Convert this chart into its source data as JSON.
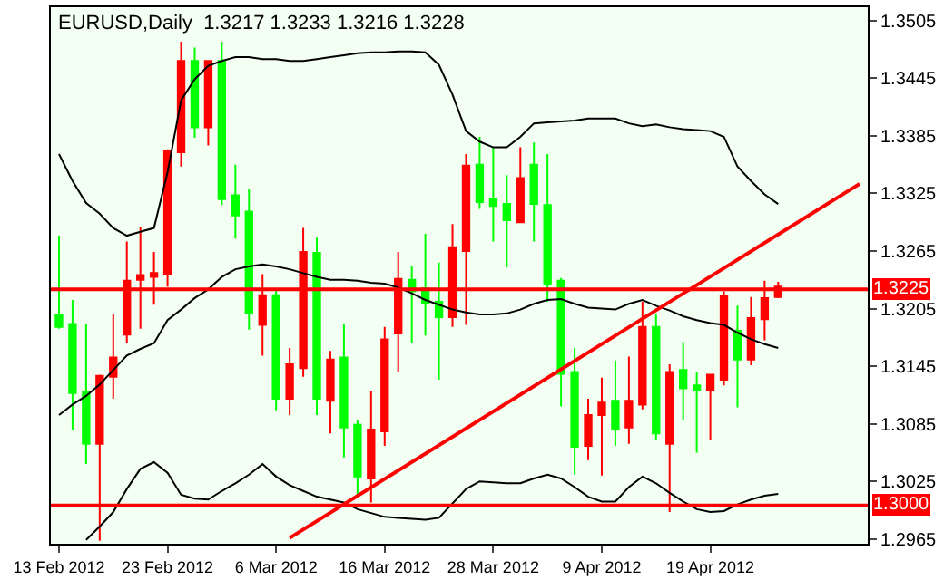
{
  "chart_data": {
    "type": "candlestick",
    "title": "EURUSD,Daily  1.3217 1.3233 1.3216 1.3228",
    "categories": [
      "13 Feb 2012",
      null,
      null,
      null,
      null,
      null,
      null,
      null,
      "23 Feb 2012",
      null,
      null,
      null,
      null,
      null,
      null,
      null,
      "6 Mar 2012",
      null,
      null,
      null,
      null,
      null,
      null,
      null,
      "16 Mar 2012",
      null,
      null,
      null,
      null,
      null,
      null,
      null,
      "28 Mar 2012",
      null,
      null,
      null,
      null,
      null,
      null,
      null,
      "9 Apr 2012",
      null,
      null,
      null,
      null,
      null,
      null,
      null,
      "19 Apr 2012",
      null,
      null,
      null,
      null,
      null,
      null,
      null,
      null,
      null,
      null,
      null
    ],
    "ylim": [
      1.296,
      1.3519
    ],
    "yticks": [
      1.2965,
      1.3025,
      1.3085,
      1.3145,
      1.3205,
      1.3265,
      1.3325,
      1.3385,
      1.3445,
      1.3505
    ],
    "grid": false,
    "ref_lines": [
      {
        "axis": "y",
        "value": 1.3225,
        "label": "1.3225",
        "color": "#ff0000"
      },
      {
        "axis": "y",
        "value": 1.3,
        "label": "1.3000",
        "color": "#ff0000"
      }
    ],
    "series": [
      {
        "ohlc": [
          [
            1.3199,
            1.3281,
            1.3184,
            1.3186
          ],
          [
            1.3189,
            1.3214,
            1.3078,
            1.3117
          ],
          [
            1.3118,
            1.3189,
            1.3043,
            1.3064
          ],
          [
            1.3064,
            1.3136,
            1.2963,
            1.3135
          ],
          [
            1.3134,
            1.3199,
            1.3111,
            1.3154
          ],
          [
            1.3178,
            1.3275,
            1.3169,
            1.3234
          ],
          [
            1.3235,
            1.329,
            1.3184,
            1.324
          ],
          [
            1.3238,
            1.3264,
            1.3209,
            1.3242
          ],
          [
            1.3241,
            1.3371,
            1.3228,
            1.3369
          ],
          [
            1.3368,
            1.3483,
            1.3353,
            1.3463
          ],
          [
            1.3463,
            1.3477,
            1.3383,
            1.3394
          ],
          [
            1.3394,
            1.3464,
            1.3375,
            1.3463
          ],
          [
            1.3463,
            1.3483,
            1.3313,
            1.3319
          ],
          [
            1.3323,
            1.3355,
            1.3278,
            1.3302
          ],
          [
            1.3306,
            1.333,
            1.3183,
            1.32
          ],
          [
            1.3188,
            1.3241,
            1.3156,
            1.3219
          ],
          [
            1.3219,
            1.3225,
            1.3099,
            1.3111
          ],
          [
            1.3111,
            1.3164,
            1.3094,
            1.3147
          ],
          [
            1.3143,
            1.3289,
            1.3134,
            1.3264
          ],
          [
            1.3263,
            1.3279,
            1.3094,
            1.3111
          ],
          [
            1.3109,
            1.3161,
            1.3075,
            1.3152
          ],
          [
            1.3154,
            1.3189,
            1.305,
            1.3081
          ],
          [
            1.3084,
            1.3089,
            1.3011,
            1.303
          ],
          [
            1.3028,
            1.3119,
            1.3003,
            1.3079
          ],
          [
            1.3077,
            1.3186,
            1.3062,
            1.3173
          ],
          [
            1.3179,
            1.3264,
            1.3139,
            1.3236
          ],
          [
            1.3235,
            1.3249,
            1.3169,
            1.3223
          ],
          [
            1.3226,
            1.3283,
            1.3177,
            1.3211
          ],
          [
            1.3212,
            1.3253,
            1.3131,
            1.3196
          ],
          [
            1.3196,
            1.3293,
            1.3186,
            1.3269
          ],
          [
            1.3265,
            1.3366,
            1.3188,
            1.3354
          ],
          [
            1.3355,
            1.3384,
            1.3309,
            1.3316
          ],
          [
            1.3319,
            1.3373,
            1.3275,
            1.3312
          ],
          [
            1.3314,
            1.3344,
            1.3248,
            1.3297
          ],
          [
            1.3295,
            1.3373,
            1.3295,
            1.3341
          ],
          [
            1.3355,
            1.3378,
            1.3275,
            1.3314
          ],
          [
            1.3313,
            1.3366,
            1.3212,
            1.3231
          ],
          [
            1.3234,
            1.3237,
            1.3103,
            1.3137
          ],
          [
            1.3139,
            1.3164,
            1.3032,
            1.3061
          ],
          [
            1.3062,
            1.3111,
            1.3047,
            1.3094
          ],
          [
            1.3094,
            1.3133,
            1.3031,
            1.3107
          ],
          [
            1.3109,
            1.3151,
            1.3062,
            1.3079
          ],
          [
            1.3081,
            1.3155,
            1.3064,
            1.3109
          ],
          [
            1.3105,
            1.3212,
            1.31,
            1.3186
          ],
          [
            1.3186,
            1.3199,
            1.3068,
            1.3075
          ],
          [
            1.3064,
            1.3147,
            1.2993,
            1.3139
          ],
          [
            1.3141,
            1.317,
            1.3089,
            1.3122
          ],
          [
            1.3125,
            1.3139,
            1.3055,
            1.312
          ],
          [
            1.312,
            1.3136,
            1.3068,
            1.3136
          ],
          [
            1.3131,
            1.3223,
            1.3125,
            1.3218
          ],
          [
            1.3182,
            1.3208,
            1.3102,
            1.3152
          ],
          [
            1.3152,
            1.3217,
            1.3146,
            1.3195
          ],
          [
            1.3194,
            1.3234,
            1.3172,
            1.3216
          ],
          [
            1.3217,
            1.3233,
            1.3216,
            1.3228
          ],
          null,
          null,
          null,
          null,
          null,
          null
        ],
        "colors": [
          "#00ff00",
          "#00ff00",
          "#00ff00",
          "#ff0000",
          "#ff0000",
          "#ff0000",
          "#ff0000",
          "#ff0000",
          "#ff0000",
          "#ff0000",
          "#00ff00",
          "#ff0000",
          "#00ff00",
          "#00ff00",
          "#00ff00",
          "#ff0000",
          "#00ff00",
          "#ff0000",
          "#ff0000",
          "#00ff00",
          "#ff0000",
          "#00ff00",
          "#00ff00",
          "#ff0000",
          "#ff0000",
          "#ff0000",
          "#00ff00",
          "#00ff00",
          "#00ff00",
          "#ff0000",
          "#ff0000",
          "#00ff00",
          "#00ff00",
          "#00ff00",
          "#ff0000",
          "#00ff00",
          "#00ff00",
          "#00ff00",
          "#00ff00",
          "#ff0000",
          "#ff0000",
          "#00ff00",
          "#ff0000",
          "#ff0000",
          "#00ff00",
          "#ff0000",
          "#00ff00",
          "#00ff00",
          "#ff0000",
          "#ff0000",
          "#00ff00",
          "#ff0000",
          "#ff0000",
          "#ff0000",
          null,
          null,
          null,
          null,
          null,
          null
        ]
      },
      {
        "type": "line",
        "color": "#000000",
        "values": [
          1.3366,
          1.3338,
          1.3315,
          1.3304,
          1.3289,
          1.3281,
          1.3285,
          1.3289,
          1.3347,
          1.3422,
          1.3444,
          1.3458,
          1.3463,
          1.3467,
          1.3467,
          1.3465,
          1.3465,
          1.3463,
          1.3463,
          1.3465,
          1.3467,
          1.3469,
          1.3471,
          1.3472,
          1.3472,
          1.3473,
          1.3473,
          1.3472,
          1.3459,
          1.3428,
          1.339,
          1.3379,
          1.3373,
          1.3373,
          1.3384,
          1.3398,
          1.3399,
          1.34,
          1.3401,
          1.3403,
          1.3403,
          1.3403,
          1.3398,
          1.3395,
          1.3397,
          1.3394,
          1.3392,
          1.3391,
          1.339,
          1.3384,
          1.3353,
          1.3338,
          1.3324,
          1.3314,
          null,
          null,
          null,
          null,
          null,
          null
        ]
      },
      {
        "type": "line",
        "color": "#000000",
        "values": [
          1.3094,
          1.3105,
          1.3114,
          1.3126,
          1.3141,
          1.3156,
          1.3163,
          1.3169,
          1.3193,
          1.3204,
          1.3216,
          1.3225,
          1.3238,
          1.3246,
          1.3249,
          1.3251,
          1.3249,
          1.3246,
          1.3242,
          1.3238,
          1.3235,
          1.3235,
          1.3234,
          1.3232,
          1.3231,
          1.3227,
          1.3221,
          1.3214,
          1.3209,
          1.3204,
          1.3201,
          1.3199,
          1.3199,
          1.32,
          1.3204,
          1.321,
          1.3214,
          1.3215,
          1.321,
          1.3206,
          1.3205,
          1.3204,
          1.321,
          1.3214,
          1.3208,
          1.3203,
          1.3197,
          1.3193,
          1.319,
          1.3188,
          1.318,
          1.3173,
          1.3168,
          1.3164,
          null,
          null,
          null,
          null,
          null,
          null
        ]
      },
      {
        "type": "line",
        "color": "#000000",
        "values": [
          null,
          null,
          1.2964,
          1.2978,
          1.2993,
          1.3017,
          1.3038,
          1.3045,
          1.3034,
          1.3011,
          1.3007,
          1.3006,
          1.3015,
          1.3023,
          1.3032,
          1.3043,
          1.303,
          1.3021,
          1.3015,
          1.3009,
          1.3006,
          1.3003,
          1.2996,
          1.2992,
          1.2988,
          1.2987,
          1.2986,
          1.2985,
          1.2987,
          1.3002,
          1.3017,
          1.3025,
          1.3024,
          1.3023,
          1.3023,
          1.3028,
          1.3032,
          1.3028,
          1.3019,
          1.3009,
          1.3004,
          1.3004,
          1.3019,
          1.303,
          1.3023,
          1.3013,
          1.3004,
          1.2996,
          1.2993,
          1.2994,
          1.3001,
          1.3006,
          1.301,
          1.3012,
          null,
          null,
          null,
          null,
          null,
          null
        ]
      },
      {
        "type": "line",
        "color": "#ff0000",
        "values": [
          null,
          null,
          null,
          null,
          null,
          null,
          null,
          null,
          null,
          null,
          null,
          null,
          null,
          null,
          null,
          null,
          null,
          1.2966,
          null,
          null,
          null,
          null,
          null,
          null,
          null,
          null,
          null,
          null,
          null,
          null,
          null,
          null,
          null,
          null,
          null,
          null,
          null,
          null,
          null,
          null,
          null,
          null,
          null,
          null,
          null,
          null,
          null,
          null,
          null,
          null,
          null,
          null,
          null,
          null,
          null,
          null,
          null,
          null,
          null,
          1.3335
        ]
      }
    ]
  }
}
